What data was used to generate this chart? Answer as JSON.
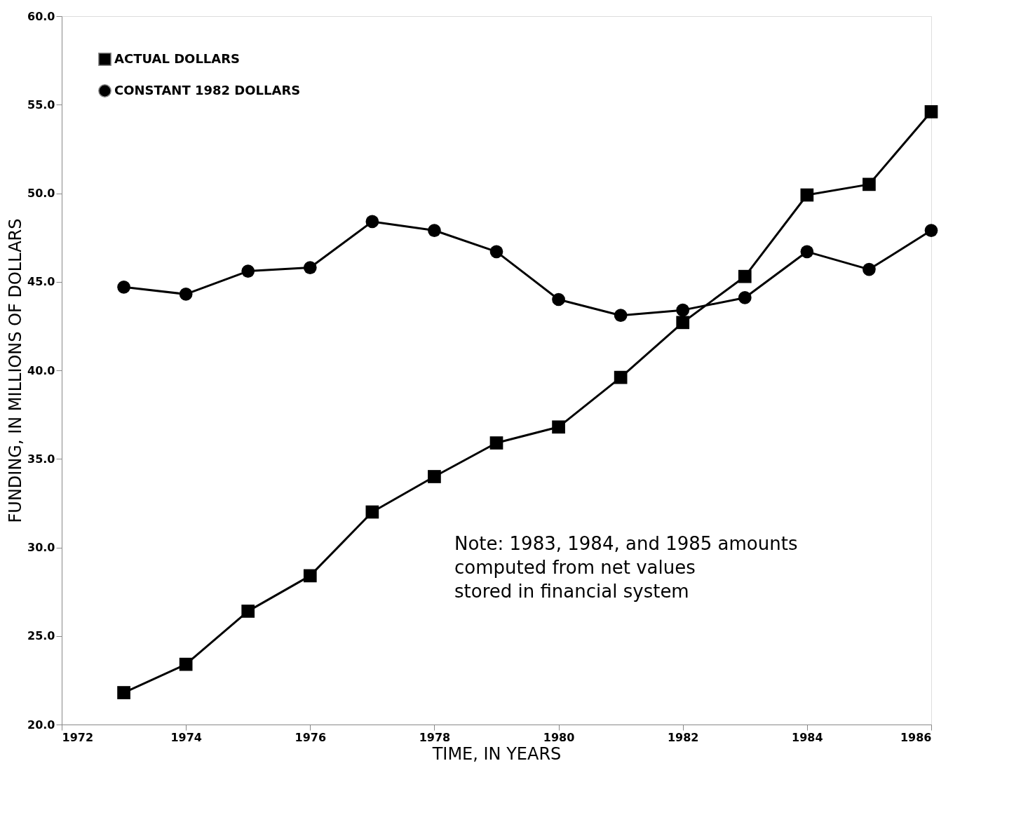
{
  "chart_data": {
    "type": "line",
    "xlabel": "TIME, IN YEARS",
    "ylabel": "FUNDING, IN MILLIONS OF DOLLARS",
    "x": [
      1973,
      1974,
      1975,
      1976,
      1977,
      1978,
      1979,
      1980,
      1981,
      1982,
      1983,
      1984,
      1985,
      1986
    ],
    "series": [
      {
        "name": "ACTUAL DOLLARS",
        "color": "#000000",
        "marker": "square",
        "values": [
          21.8,
          23.4,
          26.4,
          28.4,
          32.0,
          34.0,
          35.9,
          36.8,
          39.6,
          42.7,
          45.3,
          49.9,
          50.5,
          54.6
        ]
      },
      {
        "name": "CONSTANT 1982 DOLLARS",
        "color": "#000000",
        "marker": "circle",
        "values": [
          44.7,
          44.3,
          45.6,
          45.8,
          48.4,
          47.9,
          46.7,
          44.0,
          43.1,
          43.4,
          44.1,
          46.7,
          45.7,
          47.9
        ]
      }
    ],
    "xlim": [
      1972,
      1986
    ],
    "xticks": [
      1972,
      1974,
      1976,
      1978,
      1980,
      1982,
      1984,
      1986
    ],
    "ylim": [
      20,
      60
    ],
    "yticks": [
      {
        "value": 20,
        "label": "20.0"
      },
      {
        "value": 25,
        "label": "25.0"
      },
      {
        "value": 30,
        "label": "30.0"
      },
      {
        "value": 35,
        "label": "35.0"
      },
      {
        "value": 40,
        "label": "40.0"
      },
      {
        "value": 45,
        "label": "45.0"
      },
      {
        "value": 50,
        "label": "50.0"
      },
      {
        "value": 55,
        "label": "55.0"
      },
      {
        "value": 60,
        "label": "60.0"
      }
    ],
    "grid": false,
    "legend": "top left",
    "line_style": "solid",
    "annotations": [
      "Note: 1983, 1984, and 1985 amounts\n         computed from net values\n         stored in financial system"
    ]
  }
}
